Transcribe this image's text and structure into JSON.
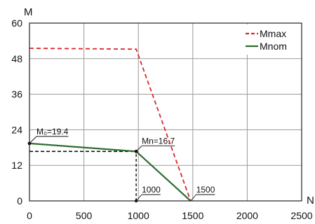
{
  "chart_data": {
    "type": "line",
    "xlabel": "N",
    "ylabel": "M",
    "xlim": [
      0,
      2500
    ],
    "ylim": [
      0,
      60
    ],
    "x_ticks": [
      0,
      500,
      1000,
      1500,
      2000,
      2500
    ],
    "y_ticks": [
      0,
      12,
      24,
      36,
      48,
      60
    ],
    "x_tick_labels": [
      "0",
      "500",
      "1000",
      "1500",
      "2000",
      "2500"
    ],
    "y_tick_labels": [
      "0",
      "12",
      "24",
      "36",
      "48",
      "60"
    ],
    "grid": true,
    "legend_position": "top-right",
    "series": [
      {
        "name": "Mmax",
        "style": "dashed",
        "color": "#d9262b",
        "points": [
          [
            0,
            51.5
          ],
          [
            980,
            51.2
          ],
          [
            1480,
            0
          ]
        ]
      },
      {
        "name": "Mnom",
        "style": "solid",
        "color": "#2d6e2f",
        "points": [
          [
            0,
            19.4
          ],
          [
            980,
            16.7
          ],
          [
            1480,
            0
          ]
        ]
      }
    ],
    "reference_lines": {
      "color": "#111111",
      "horizontal": [
        {
          "y": 16.7,
          "x_from": 0,
          "x_to": 980
        }
      ],
      "vertical": [
        {
          "x": 980,
          "y_from": 0,
          "y_to": 16.7
        }
      ]
    },
    "annotations": [
      {
        "text": "M₀=19.4",
        "x": 0,
        "y": 19.4
      },
      {
        "text": "Mn=16.7",
        "x": 980,
        "y": 16.7
      },
      {
        "text": "1000",
        "x": 980,
        "y": 0
      },
      {
        "text": "1500",
        "x": 1480,
        "y": 0
      }
    ]
  }
}
